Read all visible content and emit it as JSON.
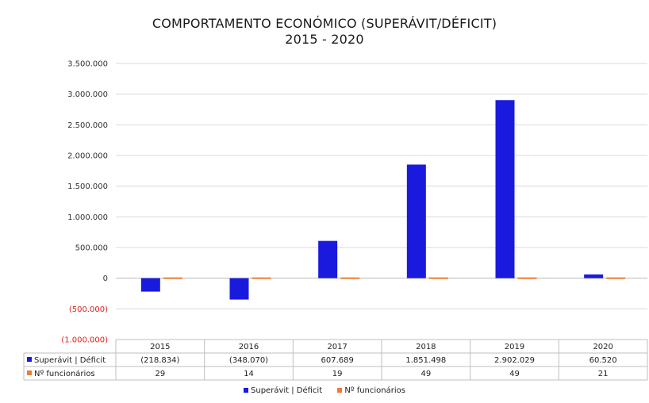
{
  "chart_data": {
    "type": "bar",
    "title": "COMPORTAMENTO ECONÓMICO (SUPERÁVIT/DÉFICIT)",
    "subtitle": "2015 - 2020",
    "categories": [
      "2015",
      "2016",
      "2017",
      "2018",
      "2019",
      "2020"
    ],
    "series": [
      {
        "name": "Superávit | Déficit",
        "color": "#1a1adf",
        "values": [
          -218834,
          -348070,
          607689,
          1851498,
          2902029,
          60520
        ],
        "labels": [
          "(218.834)",
          "(348.070)",
          "607.689",
          "1.851.498",
          "2.902.029",
          "60.520"
        ]
      },
      {
        "name": "Nº funcionários",
        "color": "#ed7d31",
        "values": [
          29,
          14,
          19,
          49,
          49,
          21
        ],
        "labels": [
          "29",
          "14",
          "19",
          "49",
          "49",
          "21"
        ]
      }
    ],
    "ylim": [
      -1000000,
      3500000
    ],
    "yticks": [
      3500000,
      3000000,
      2500000,
      2000000,
      1500000,
      1000000,
      500000,
      0,
      -500000,
      -1000000
    ],
    "ytick_labels": [
      "3.500.000",
      "3.000.000",
      "2.500.000",
      "2.000.000",
      "1.500.000",
      "1.000.000",
      "500.000",
      "0",
      "(500.000)",
      "(1.000.000)"
    ],
    "negative_color": "#e0221b",
    "grid": true,
    "legend_position": "bottom",
    "data_table": true
  }
}
